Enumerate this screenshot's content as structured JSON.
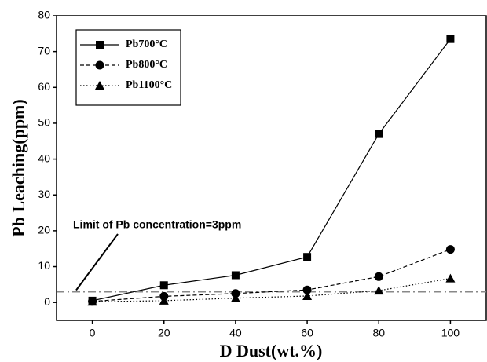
{
  "chart_data": {
    "type": "line",
    "x_label": "D Dust(wt.%)",
    "y_label": "Pb Leaching(ppm)",
    "x": [
      0,
      20,
      40,
      60,
      80,
      100
    ],
    "series": [
      {
        "name": "Pb700°C",
        "color": "#000000",
        "line_style": "solid",
        "marker": "square",
        "values": [
          0.5,
          4.8,
          7.6,
          12.7,
          47,
          73.5
        ]
      },
      {
        "name": "Pb800°C",
        "color": "#000000",
        "line_style": "dashed",
        "marker": "circle",
        "values": [
          0.3,
          1.7,
          2.5,
          3.5,
          7.2,
          14.8
        ]
      },
      {
        "name": "Pb1100°C",
        "color": "#000000",
        "line_style": "dotted",
        "marker": "triangle",
        "values": [
          0.2,
          0.5,
          1.2,
          1.8,
          3.3,
          6.7
        ]
      }
    ],
    "limit_line": {
      "value": 3,
      "color": "#888888",
      "text": "Limit of Pb concentration=3ppm"
    },
    "xlim": [
      -10,
      110
    ],
    "xticks": [
      0,
      20,
      40,
      60,
      80,
      100
    ],
    "ylim": [
      -5,
      80
    ],
    "yticks": [
      0,
      10,
      20,
      30,
      40,
      50,
      60,
      70,
      80
    ],
    "legend": "upper left"
  }
}
